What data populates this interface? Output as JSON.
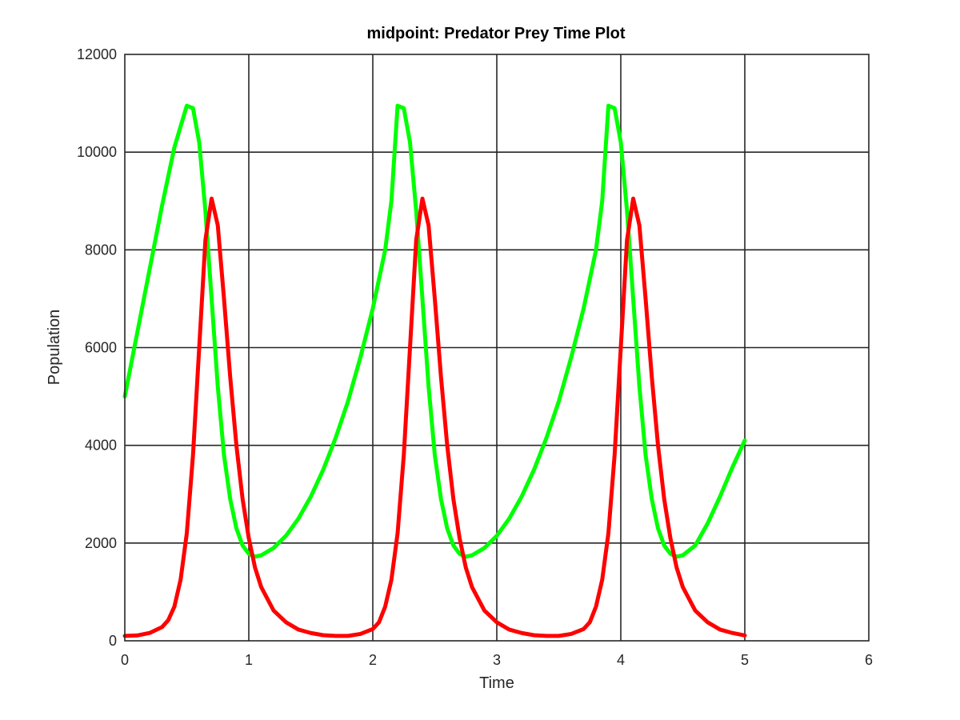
{
  "chart_data": {
    "type": "line",
    "title": "midpoint: Predator Prey Time Plot",
    "xlabel": "Time",
    "ylabel": "Population",
    "xlim": [
      0,
      6
    ],
    "ylim": [
      0,
      12000
    ],
    "xticks": [
      "0",
      "1",
      "2",
      "3",
      "4",
      "5",
      "6"
    ],
    "yticks": [
      "0",
      "2000",
      "4000",
      "6000",
      "8000",
      "10000",
      "12000"
    ],
    "grid": true,
    "series": [
      {
        "color": "#00ff00",
        "points": [
          [
            0,
            5000
          ],
          [
            0.1,
            6300
          ],
          [
            0.2,
            7600
          ],
          [
            0.3,
            8900
          ],
          [
            0.4,
            10100
          ],
          [
            0.5,
            10950
          ],
          [
            0.55,
            10900
          ],
          [
            0.6,
            10200
          ],
          [
            0.65,
            8800
          ],
          [
            0.7,
            7000
          ],
          [
            0.75,
            5200
          ],
          [
            0.8,
            3800
          ],
          [
            0.85,
            2900
          ],
          [
            0.9,
            2300
          ],
          [
            0.95,
            1950
          ],
          [
            1.0,
            1780
          ],
          [
            1.05,
            1720
          ],
          [
            1.1,
            1750
          ],
          [
            1.2,
            1900
          ],
          [
            1.3,
            2150
          ],
          [
            1.4,
            2500
          ],
          [
            1.5,
            2950
          ],
          [
            1.6,
            3500
          ],
          [
            1.7,
            4150
          ],
          [
            1.8,
            4900
          ],
          [
            1.9,
            5800
          ],
          [
            2.0,
            6800
          ],
          [
            2.1,
            8000
          ],
          [
            2.15,
            9000
          ],
          [
            2.2,
            10950
          ],
          [
            2.25,
            10900
          ],
          [
            2.3,
            10200
          ],
          [
            2.35,
            8800
          ],
          [
            2.4,
            7000
          ],
          [
            2.45,
            5200
          ],
          [
            2.5,
            3800
          ],
          [
            2.55,
            2900
          ],
          [
            2.6,
            2300
          ],
          [
            2.65,
            1950
          ],
          [
            2.7,
            1780
          ],
          [
            2.75,
            1720
          ],
          [
            2.8,
            1750
          ],
          [
            2.9,
            1900
          ],
          [
            3.0,
            2150
          ],
          [
            3.1,
            2500
          ],
          [
            3.2,
            2950
          ],
          [
            3.3,
            3500
          ],
          [
            3.4,
            4150
          ],
          [
            3.5,
            4900
          ],
          [
            3.6,
            5800
          ],
          [
            3.7,
            6800
          ],
          [
            3.8,
            8000
          ],
          [
            3.85,
            9000
          ],
          [
            3.9,
            10950
          ],
          [
            3.95,
            10900
          ],
          [
            4.0,
            10200
          ],
          [
            4.05,
            8800
          ],
          [
            4.1,
            7000
          ],
          [
            4.15,
            5200
          ],
          [
            4.2,
            3800
          ],
          [
            4.25,
            2900
          ],
          [
            4.3,
            2300
          ],
          [
            4.35,
            1950
          ],
          [
            4.4,
            1780
          ],
          [
            4.45,
            1720
          ],
          [
            4.5,
            1750
          ],
          [
            4.6,
            1950
          ],
          [
            4.7,
            2400
          ],
          [
            4.8,
            2950
          ],
          [
            4.9,
            3550
          ],
          [
            5.0,
            4100
          ]
        ]
      },
      {
        "color": "#ff0000",
        "points": [
          [
            0,
            100
          ],
          [
            0.1,
            110
          ],
          [
            0.2,
            160
          ],
          [
            0.3,
            280
          ],
          [
            0.35,
            420
          ],
          [
            0.4,
            700
          ],
          [
            0.45,
            1250
          ],
          [
            0.5,
            2200
          ],
          [
            0.55,
            3800
          ],
          [
            0.6,
            6000
          ],
          [
            0.65,
            8200
          ],
          [
            0.7,
            9050
          ],
          [
            0.75,
            8500
          ],
          [
            0.8,
            7000
          ],
          [
            0.85,
            5400
          ],
          [
            0.9,
            4000
          ],
          [
            0.95,
            2900
          ],
          [
            1.0,
            2100
          ],
          [
            1.05,
            1500
          ],
          [
            1.1,
            1100
          ],
          [
            1.2,
            620
          ],
          [
            1.3,
            380
          ],
          [
            1.4,
            230
          ],
          [
            1.5,
            160
          ],
          [
            1.6,
            115
          ],
          [
            1.7,
            100
          ],
          [
            1.8,
            100
          ],
          [
            1.9,
            140
          ],
          [
            2.0,
            240
          ],
          [
            2.05,
            380
          ],
          [
            2.1,
            700
          ],
          [
            2.15,
            1250
          ],
          [
            2.2,
            2200
          ],
          [
            2.25,
            3800
          ],
          [
            2.3,
            6000
          ],
          [
            2.35,
            8200
          ],
          [
            2.4,
            9050
          ],
          [
            2.45,
            8500
          ],
          [
            2.5,
            7000
          ],
          [
            2.55,
            5400
          ],
          [
            2.6,
            4000
          ],
          [
            2.65,
            2900
          ],
          [
            2.7,
            2100
          ],
          [
            2.75,
            1500
          ],
          [
            2.8,
            1100
          ],
          [
            2.9,
            620
          ],
          [
            3.0,
            380
          ],
          [
            3.1,
            230
          ],
          [
            3.2,
            160
          ],
          [
            3.3,
            115
          ],
          [
            3.4,
            100
          ],
          [
            3.5,
            100
          ],
          [
            3.6,
            140
          ],
          [
            3.7,
            240
          ],
          [
            3.75,
            380
          ],
          [
            3.8,
            700
          ],
          [
            3.85,
            1250
          ],
          [
            3.9,
            2200
          ],
          [
            3.95,
            3800
          ],
          [
            4.0,
            6000
          ],
          [
            4.05,
            8200
          ],
          [
            4.1,
            9050
          ],
          [
            4.15,
            8500
          ],
          [
            4.2,
            7000
          ],
          [
            4.25,
            5400
          ],
          [
            4.3,
            4000
          ],
          [
            4.35,
            2900
          ],
          [
            4.4,
            2100
          ],
          [
            4.45,
            1500
          ],
          [
            4.5,
            1100
          ],
          [
            4.6,
            620
          ],
          [
            4.7,
            380
          ],
          [
            4.8,
            230
          ],
          [
            4.9,
            160
          ],
          [
            5.0,
            110
          ]
        ]
      }
    ]
  }
}
